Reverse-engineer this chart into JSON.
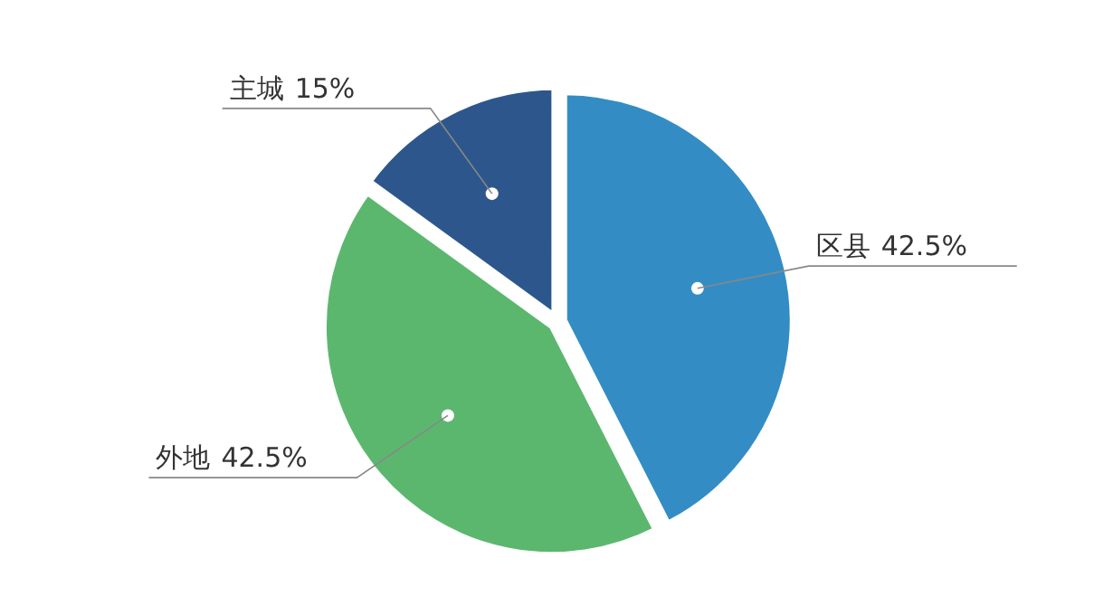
{
  "chart_data": {
    "type": "pie",
    "categories": [
      "区县",
      "外地",
      "主城"
    ],
    "values": [
      42.5,
      42.5,
      15
    ],
    "value_labels": [
      "42.5%",
      "42.5%",
      "15%"
    ],
    "colors": [
      "#338dc4",
      "#5cb76e",
      "#2d578c"
    ]
  }
}
